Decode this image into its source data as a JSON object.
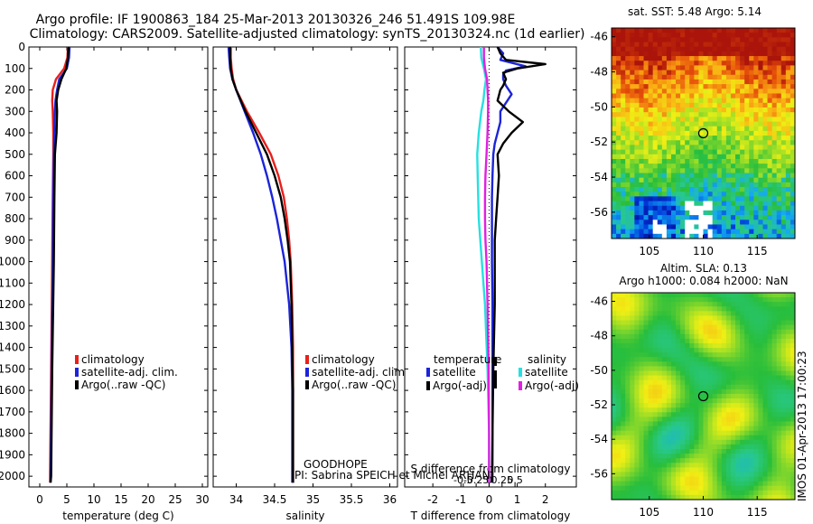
{
  "header": {
    "line1": "Argo profile: IF 1900863_184 25-Mar-2013 20130326_246 51.491S 109.98E",
    "line2": "Climatology: CARS2009. Satellite-adjusted climatology: synTS_20130324.nc (1d earlier)"
  },
  "side_label": "IMOS 01-Apr-2013 17:00:23",
  "float_note": {
    "line1": "GOODHOPE",
    "line2": "PI: Sabrina SPEICH et Michel ARHAN"
  },
  "map_titles": {
    "sst": "sat. SST: 5.48 Argo: 5.14",
    "sla_line1": "Altim. SLA: 0.13",
    "sla_line2": "Argo h1000: 0.084 h2000: NaN"
  },
  "colors": {
    "climatology": "#e8201c",
    "satellite": "#1c24d8",
    "argo": "#000000",
    "sal_satellite": "#27e0e0",
    "sal_argo": "#e020e0"
  },
  "chart_data": [
    {
      "type": "line",
      "xlabel": "temperature (deg C)",
      "ylabel": "",
      "xlim": [
        -2,
        31
      ],
      "ylim": [
        2050,
        0
      ],
      "xticks": [
        0,
        5,
        10,
        15,
        20,
        25,
        30
      ],
      "yticks": [
        0,
        100,
        200,
        300,
        400,
        500,
        600,
        700,
        800,
        900,
        1000,
        1100,
        1200,
        1300,
        1400,
        1500,
        1600,
        1700,
        1800,
        1900,
        2000
      ],
      "legend": [
        "climatology",
        "satellite-adj. clim.",
        "Argo(..raw -QC)"
      ],
      "series": [
        {
          "name": "climatology",
          "depth": [
            0,
            50,
            100,
            150,
            200,
            250,
            300,
            400,
            500,
            700,
            1000,
            1500,
            2000,
            2030
          ],
          "values": [
            5.2,
            5.1,
            4.5,
            3.0,
            2.4,
            2.3,
            2.4,
            2.5,
            2.5,
            2.4,
            2.3,
            2.1,
            1.9,
            1.9
          ]
        },
        {
          "name": "satellite-adj. clim.",
          "depth": [
            0,
            50,
            100,
            150,
            200,
            250,
            300,
            400,
            500,
            700,
            1000,
            1500,
            2000,
            2030
          ],
          "values": [
            5.5,
            5.4,
            5.0,
            3.6,
            3.2,
            2.9,
            2.8,
            2.7,
            2.6,
            2.5,
            2.4,
            2.2,
            2.0,
            2.0
          ]
        },
        {
          "name": "Argo(..raw -QC)",
          "depth": [
            0,
            50,
            100,
            150,
            200,
            250,
            300,
            400,
            500,
            700,
            1000,
            1500,
            2000,
            2030
          ],
          "values": [
            5.3,
            5.2,
            4.9,
            4.0,
            3.4,
            3.1,
            3.2,
            3.1,
            2.8,
            2.7,
            2.6,
            2.3,
            2.1,
            2.0
          ]
        }
      ]
    },
    {
      "type": "line",
      "xlabel": "salinity",
      "ylabel": "",
      "xlim": [
        33.7,
        36.1
      ],
      "ylim": [
        2050,
        0
      ],
      "xticks": [
        34,
        34.5,
        35,
        35.5,
        36
      ],
      "xticklabels": [
        "34",
        "34.5",
        "35",
        "35.5",
        "36"
      ],
      "legend": [
        "climatology",
        "satellite-adj. clim.",
        "Argo(..raw -QC)"
      ],
      "series": [
        {
          "name": "climatology",
          "depth": [
            0,
            50,
            100,
            150,
            200,
            300,
            400,
            500,
            600,
            700,
            800,
            900,
            1000,
            1200,
            1400,
            1600,
            2030
          ],
          "values": [
            33.93,
            33.93,
            33.94,
            33.96,
            34.0,
            34.14,
            34.3,
            34.45,
            34.55,
            34.62,
            34.66,
            34.69,
            34.71,
            34.73,
            34.74,
            34.74,
            34.74
          ]
        },
        {
          "name": "satellite-adj. clim.",
          "depth": [
            0,
            50,
            100,
            150,
            200,
            300,
            400,
            500,
            600,
            700,
            800,
            900,
            1000,
            1200,
            1400,
            1600,
            2030
          ],
          "values": [
            33.9,
            33.91,
            33.92,
            33.95,
            34.0,
            34.11,
            34.22,
            34.32,
            34.4,
            34.47,
            34.53,
            34.58,
            34.63,
            34.69,
            34.72,
            34.73,
            34.73
          ]
        },
        {
          "name": "Argo(..raw -QC)",
          "depth": [
            0,
            50,
            100,
            150,
            200,
            300,
            400,
            500,
            600,
            700,
            800,
            900,
            1000,
            1200,
            1400,
            1600,
            2030
          ],
          "values": [
            33.92,
            33.92,
            33.93,
            33.95,
            34.0,
            34.12,
            34.26,
            34.4,
            34.5,
            34.58,
            34.63,
            34.67,
            34.7,
            34.72,
            34.73,
            34.74,
            34.74
          ]
        }
      ]
    },
    {
      "type": "line",
      "xlabel": "T difference from climatology",
      "xlabel_top": "S difference from climatology",
      "ylabel": "",
      "xlim": [
        -3,
        3.1
      ],
      "ylim": [
        2050,
        0
      ],
      "xticks": [
        -2,
        -1,
        0,
        1,
        2
      ],
      "sticks": [
        -0.5,
        -0.25,
        0,
        0.25,
        0.5
      ],
      "legend_left_title": "temperature",
      "legend_right_title": "salinity",
      "legend": [
        "satellite",
        "Argo(-adj)",
        "satellite",
        "Argo(-adj)"
      ],
      "series": [
        {
          "name": "satellite",
          "depth": [
            0,
            30,
            60,
            90,
            110,
            130,
            150,
            180,
            220,
            260,
            300,
            350,
            400,
            450,
            500,
            600,
            700,
            800,
            900,
            1000,
            1200,
            1500,
            1800,
            2030
          ],
          "values": [
            0.3,
            0.5,
            0.4,
            1.3,
            0.6,
            0.5,
            0.5,
            0.6,
            0.8,
            0.6,
            0.4,
            0.4,
            0.3,
            0.2,
            0.15,
            0.12,
            0.1,
            0.1,
            0.1,
            0.1,
            0.12,
            0.12,
            0.12,
            0.12
          ]
        },
        {
          "name": "Argo(-adj)",
          "depth": [
            0,
            30,
            60,
            80,
            100,
            120,
            150,
            180,
            200,
            250,
            300,
            350,
            400,
            450,
            500,
            600,
            700,
            800,
            900,
            1000,
            1200,
            1500,
            1800,
            2030
          ],
          "values": [
            0.3,
            0.4,
            0.6,
            2.0,
            1.0,
            0.5,
            0.6,
            0.5,
            0.4,
            0.3,
            0.7,
            1.2,
            0.8,
            0.5,
            0.3,
            0.35,
            0.3,
            0.25,
            0.2,
            0.2,
            0.2,
            0.15,
            0.12,
            0.1
          ]
        },
        {
          "name": "satellite",
          "depth": [
            0,
            50,
            100,
            150,
            200,
            250,
            300,
            400,
            500,
            600,
            700,
            800,
            900,
            1000,
            1200,
            1500,
            1800,
            2030
          ],
          "values": [
            -0.16,
            -0.15,
            -0.1,
            -0.06,
            -0.09,
            -0.11,
            -0.15,
            -0.2,
            -0.23,
            -0.22,
            -0.21,
            -0.2,
            -0.17,
            -0.14,
            -0.08,
            -0.03,
            0.0,
            0.0
          ]
        },
        {
          "name": "Argo(-adj)",
          "depth": [
            0,
            50,
            100,
            150,
            200,
            250,
            300,
            400,
            500,
            600,
            700,
            800,
            900,
            1000,
            1200,
            1500,
            1800,
            2030
          ],
          "values": [
            -0.1,
            -0.1,
            -0.08,
            -0.04,
            -0.03,
            -0.02,
            -0.02,
            -0.03,
            -0.05,
            -0.07,
            -0.08,
            -0.08,
            -0.07,
            -0.05,
            -0.03,
            -0.01,
            0.0,
            0.0
          ]
        }
      ]
    },
    {
      "type": "heatmap",
      "title": "sat. SST: 5.48 Argo: 5.14",
      "xlim": [
        101.5,
        118.5
      ],
      "ylim": [
        -57.5,
        -45.5
      ],
      "xticks": [
        105,
        110,
        115
      ],
      "yticks": [
        -46,
        -48,
        -50,
        -52,
        -54,
        -56
      ],
      "marker": [
        110,
        -51.5
      ]
    },
    {
      "type": "heatmap",
      "title": "Altim. SLA: 0.13",
      "xlim": [
        101.5,
        118.5
      ],
      "ylim": [
        -57.5,
        -45.5
      ],
      "xticks": [
        105,
        110,
        115
      ],
      "yticks": [
        -46,
        -48,
        -50,
        -52,
        -54,
        -56
      ],
      "marker": [
        110,
        -51.5
      ]
    }
  ]
}
